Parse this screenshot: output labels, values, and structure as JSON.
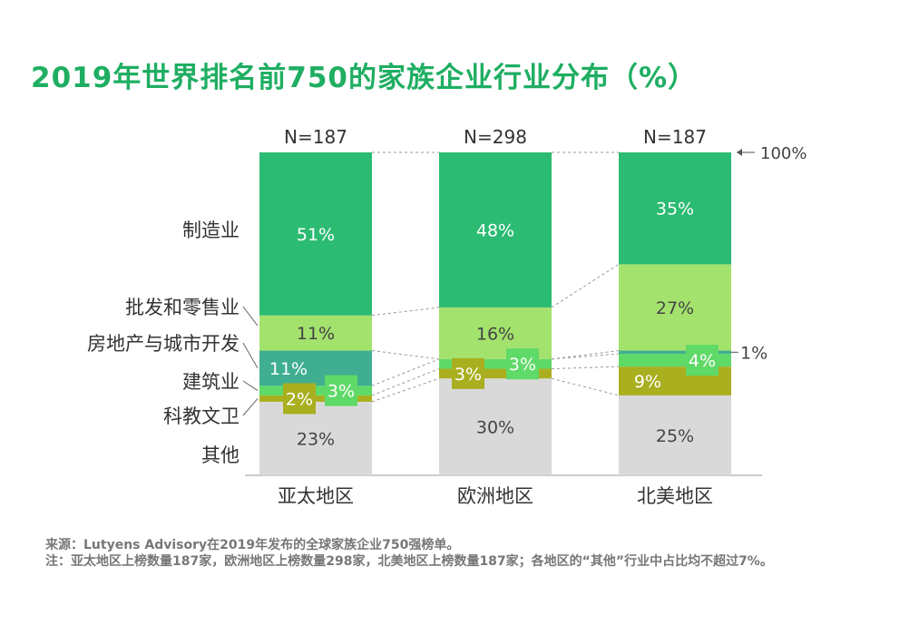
{
  "title": "2019年世界排名前750的家族企业行业分布（%）",
  "chart_data": {
    "type": "bar",
    "stacked": true,
    "title": "2019年世界排名前750的家族企业行业分布（%）",
    "categories": [
      "亚太地区",
      "欧洲地区",
      "北美地区"
    ],
    "sample_sizes": [
      "N=187",
      "N=298",
      "N=187"
    ],
    "top_marker": "100%",
    "ylim": [
      0,
      100
    ],
    "series": [
      {
        "name": "其他",
        "values": [
          23,
          30,
          25
        ],
        "color": "#d9d9d9"
      },
      {
        "name": "科教文卫",
        "values": [
          2,
          3,
          9
        ],
        "color": "#a9af1f"
      },
      {
        "name": "建筑业",
        "values": [
          3,
          3,
          4
        ],
        "color": "#5fd967"
      },
      {
        "name": "房地产与城市开发",
        "values": [
          11,
          0,
          1
        ],
        "color": "#3fae91"
      },
      {
        "name": "批发和零售业",
        "values": [
          11,
          16,
          27
        ],
        "color": "#a3e26d"
      },
      {
        "name": "制造业",
        "values": [
          51,
          48,
          35
        ],
        "color": "#2bbb72"
      }
    ],
    "data_labels": [
      [
        "23%",
        "30%",
        "25%"
      ],
      [
        "2%",
        "3%",
        "9%"
      ],
      [
        "3%",
        "3%",
        "4%"
      ],
      [
        "11%",
        "",
        "1%"
      ],
      [
        "11%",
        "16%",
        "27%"
      ],
      [
        "51%",
        "48%",
        "35%"
      ]
    ]
  },
  "footnote": {
    "source": "来源：Lutyens Advisory在2019年发布的全球家族企业750强榜单。",
    "note": "注：亚太地区上榜数量187家，欧洲地区上榜数量298家，北美地区上榜数量187家；各地区的“其他”行业中占比均不超过7%。"
  }
}
